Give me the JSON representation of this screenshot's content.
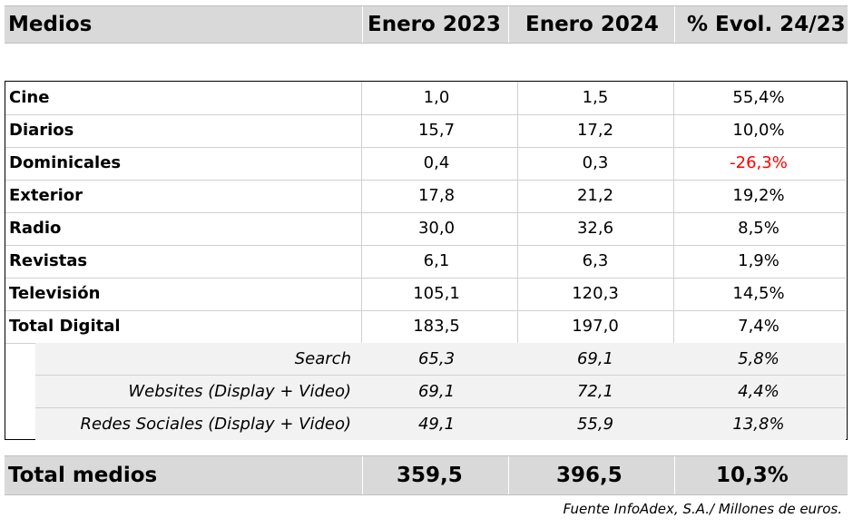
{
  "header": {
    "medios": "Medios",
    "col1": "Enero 2023",
    "col2": "Enero 2024",
    "col3": "% Evol. 24/23"
  },
  "rows": [
    {
      "label": "Cine",
      "v2023": "1,0",
      "v2024": "1,5",
      "evol": "55,4%"
    },
    {
      "label": "Diarios",
      "v2023": "15,7",
      "v2024": "17,2",
      "evol": "10,0%"
    },
    {
      "label": "Dominicales",
      "v2023": "0,4",
      "v2024": "0,3",
      "evol": "-26,3%"
    },
    {
      "label": "Exterior",
      "v2023": "17,8",
      "v2024": "21,2",
      "evol": "19,2%"
    },
    {
      "label": "Radio",
      "v2023": "30,0",
      "v2024": "32,6",
      "evol": "8,5%"
    },
    {
      "label": "Revistas",
      "v2023": "6,1",
      "v2024": "6,3",
      "evol": "1,9%"
    },
    {
      "label": "Televisión",
      "v2023": "105,1",
      "v2024": "120,3",
      "evol": "14,5%"
    },
    {
      "label": "Total Digital",
      "v2023": "183,5",
      "v2024": "197,0",
      "evol": "7,4%"
    }
  ],
  "subrows": [
    {
      "label": "Search",
      "v2023": "65,3",
      "v2024": "69,1",
      "evol": "5,8%"
    },
    {
      "label": "Websites (Display + Video)",
      "v2023": "69,1",
      "v2024": "72,1",
      "evol": "4,4%"
    },
    {
      "label": "Redes Sociales (Display + Video)",
      "v2023": "49,1",
      "v2024": "55,9",
      "evol": "13,8%"
    }
  ],
  "total": {
    "label": "Total medios",
    "v2023": "359,5",
    "v2024": "396,5",
    "evol": "10,3%"
  },
  "footer": "Fuente InfoAdex, S.A./ Millones de euros.",
  "colors": {
    "negative": "#ff0000",
    "header_bg": "#d9d9d9",
    "sub_bg": "#f2f2f2"
  }
}
